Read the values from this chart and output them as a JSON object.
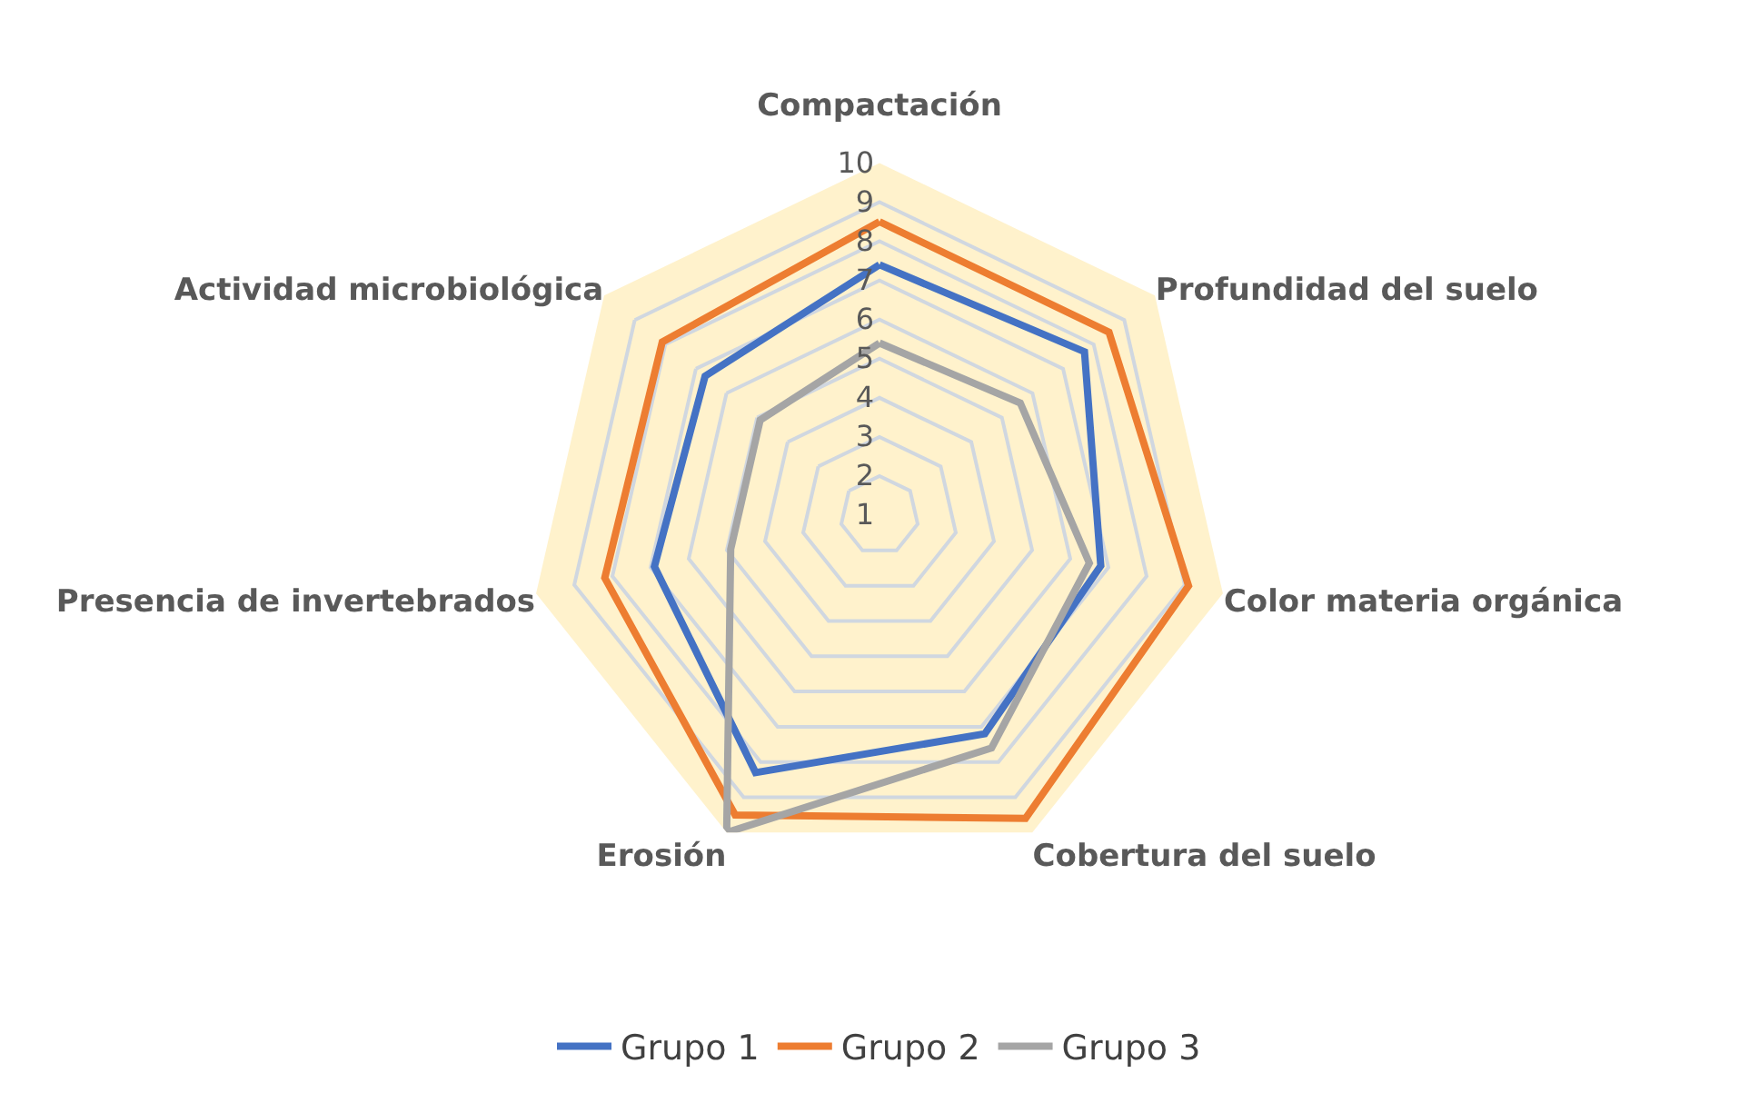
{
  "chart_data": {
    "type": "radar",
    "categories": [
      "Compactación",
      "Profundidad del suelo",
      "Color materia orgánica",
      "Cobertura del suelo",
      "Erosión",
      "Presencia de invertebrados",
      "Actividad microbiológica"
    ],
    "series": [
      {
        "name": "Grupo 1",
        "color": "#4472c4",
        "values": [
          7.4,
          7.7,
          6.8,
          7.2,
          8.3,
          6.9,
          6.7
        ]
      },
      {
        "name": "Grupo 2",
        "color": "#ed7d31",
        "values": [
          8.5,
          8.5,
          9.1,
          9.6,
          9.5,
          8.2,
          8.1
        ]
      },
      {
        "name": "Grupo 3",
        "color": "#a5a5a5",
        "values": [
          5.4,
          5.6,
          6.5,
          7.6,
          10,
          4.9,
          4.9
        ]
      }
    ],
    "ylim": [
      1,
      10
    ],
    "yticks": [
      1,
      2,
      3,
      4,
      5,
      6,
      7,
      8,
      9,
      10
    ],
    "grid": true,
    "legend": "bottom",
    "marker": "none",
    "line_style": "solid"
  }
}
